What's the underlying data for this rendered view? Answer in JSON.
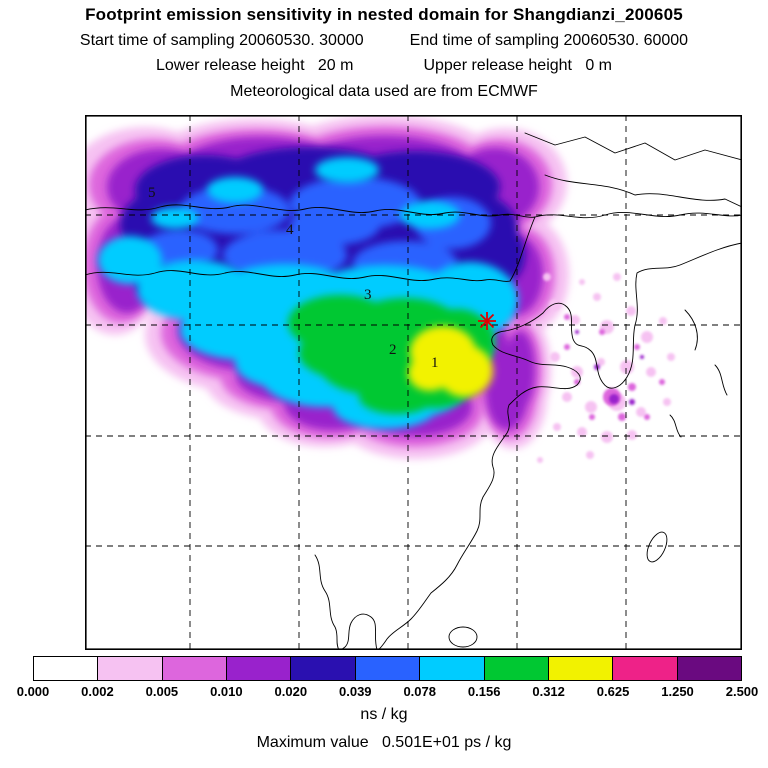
{
  "header": {
    "title": "Footprint emission sensitivity in nested domain for Shangdianzi_200605",
    "start_label": "Start time of sampling 20060530. 30000",
    "end_label": "End time of sampling 20060530. 60000",
    "lower_label": "Lower release height   20 m",
    "upper_label": "Upper release height   0 m",
    "met_label": "Meteorological data used are from ECMWF"
  },
  "chart_data": {
    "type": "heatmap",
    "title": "Footprint emission sensitivity in nested domain for Shangdianzi_200605",
    "station": "Shangdianzi_200605",
    "sampling_start": "20060530. 30000",
    "sampling_end": "20060530. 60000",
    "lower_release_height_m": 20,
    "upper_release_height_m": 0,
    "met_data_source": "ECMWF",
    "units": "ns / kg",
    "max_value": "0.501E+01 ps / kg",
    "colorbar": {
      "levels": [
        "0.000",
        "0.002",
        "0.005",
        "0.010",
        "0.020",
        "0.039",
        "0.078",
        "0.156",
        "0.312",
        "0.625",
        "1.250",
        "2.500"
      ],
      "colors": [
        "#ffffff",
        "#f6c2f2",
        "#dd66dd",
        "#9922cc",
        "#2a10b0",
        "#2962ff",
        "#00ccff",
        "#00c832",
        "#f2f200",
        "#ee2288",
        "#6a0a80"
      ]
    },
    "cluster_labels": [
      "1",
      "2",
      "3",
      "4",
      "5"
    ],
    "station_marker": {
      "symbol": "star",
      "color": "#e00000"
    }
  },
  "footer": {
    "units_label": "ns / kg",
    "max_value_label": "Maximum value   0.501E+01 ps / kg"
  }
}
